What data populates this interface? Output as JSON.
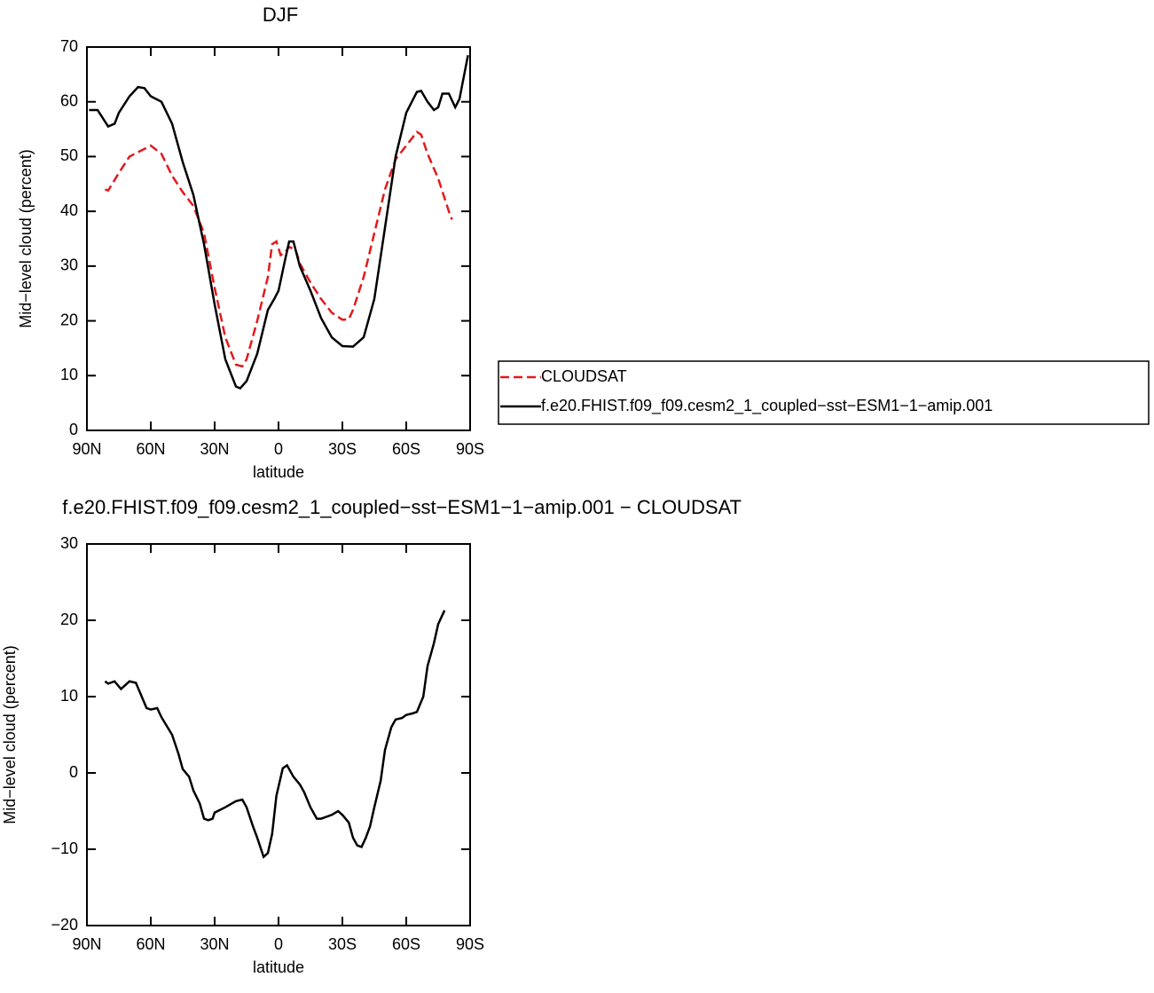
{
  "chart_data": [
    {
      "type": "line",
      "title": "DJF",
      "xlabel": "latitude",
      "ylabel": "Mid−level cloud (percent)",
      "xlim": [
        90,
        -90
      ],
      "xticks": [
        {
          "value": 90,
          "label": "90N"
        },
        {
          "value": 60,
          "label": "60N"
        },
        {
          "value": 30,
          "label": "30N"
        },
        0,
        {
          "value": -30,
          "label": "30S"
        },
        {
          "value": -60,
          "label": "60S"
        },
        {
          "value": -90,
          "label": "90S"
        }
      ],
      "ylim": [
        0,
        70
      ],
      "yticks": [
        0,
        10,
        20,
        30,
        40,
        50,
        60,
        70
      ],
      "legend": "right",
      "series": [
        {
          "name": "CLOUDSAT",
          "color": "#e31a1c",
          "dash": true,
          "x": [
            81.5,
            80,
            75,
            70,
            65,
            60,
            55,
            50,
            45,
            40,
            35,
            30,
            25,
            20,
            17,
            15,
            10,
            5,
            3,
            1,
            -1,
            -3,
            -5,
            -8,
            -10,
            -15,
            -20,
            -25,
            -30,
            -33,
            -35,
            -40,
            -45,
            -50,
            -55,
            -60,
            -65,
            -67,
            -70,
            -75,
            -80,
            -81.5
          ],
          "values": [
            44,
            43.8,
            47,
            50,
            51,
            52,
            50.5,
            46.5,
            43.5,
            41,
            36,
            26,
            17,
            12,
            11.7,
            13,
            20,
            28,
            34,
            34.5,
            32,
            32.5,
            33.5,
            33,
            30.5,
            27,
            24,
            21.5,
            20.2,
            20.3,
            22,
            28,
            36,
            44,
            49.5,
            52,
            54.5,
            54,
            50.5,
            46,
            40,
            38.5
          ]
        },
        {
          "name": "f.e20.FHIST.f09_f09.cesm2_1_coupled−sst−ESM1−1−amip.001",
          "color": "#000000",
          "dash": false,
          "x": [
            89,
            85,
            80,
            77,
            75,
            70,
            66,
            63,
            60,
            55,
            50,
            45,
            40,
            35,
            30,
            25,
            20,
            18,
            15,
            10,
            5,
            2,
            0,
            -3,
            -5,
            -7,
            -10,
            -15,
            -20,
            -25,
            -30,
            -35,
            -40,
            -45,
            -50,
            -55,
            -60,
            -65,
            -67,
            -70,
            -73,
            -75,
            -77,
            -80,
            -83,
            -85,
            -89
          ],
          "values": [
            58.5,
            58.5,
            55.5,
            56,
            58,
            61,
            62.7,
            62.5,
            61,
            60,
            56,
            49,
            43,
            34,
            23,
            13,
            8,
            7.7,
            9,
            14,
            22,
            24,
            25.5,
            31,
            34.5,
            34.5,
            30,
            25.5,
            20.5,
            17,
            15.4,
            15.3,
            17,
            24,
            37,
            50,
            58,
            61.8,
            62,
            60,
            58.5,
            59,
            61.5,
            61.5,
            59,
            60.5,
            68.5
          ]
        }
      ]
    },
    {
      "type": "line",
      "title": "f.e20.FHIST.f09_f09.cesm2_1_coupled−sst−ESM1−1−amip.001 − CLOUDSAT",
      "xlabel": "latitude",
      "ylabel": "Mid−level cloud (percent)",
      "xlim": [
        90,
        -90
      ],
      "xticks": [
        {
          "value": 90,
          "label": "90N"
        },
        {
          "value": 60,
          "label": "60N"
        },
        {
          "value": 30,
          "label": "30N"
        },
        0,
        {
          "value": -30,
          "label": "30S"
        },
        {
          "value": -60,
          "label": "60S"
        },
        {
          "value": -90,
          "label": "90S"
        }
      ],
      "ylim": [
        -20,
        30
      ],
      "yticks": [
        {
          "value": -20,
          "label": "−20"
        },
        {
          "value": -10,
          "label": "−10"
        },
        0,
        10,
        20,
        30
      ],
      "series": [
        {
          "color": "#000000",
          "dash": false,
          "x": [
            81.5,
            80,
            77,
            74,
            70,
            67,
            65,
            62,
            60,
            57,
            55,
            50,
            47,
            45,
            42,
            40,
            37,
            35,
            33,
            31,
            30,
            25,
            20,
            17,
            15,
            12,
            10,
            7,
            5,
            3,
            1,
            -2,
            -4,
            -7,
            -10,
            -12,
            -15,
            -18,
            -20,
            -25,
            -28,
            -30,
            -33,
            -35,
            -37,
            -39,
            -41,
            -43,
            -45,
            -48,
            -50,
            -53,
            -55,
            -58,
            -60,
            -63,
            -65,
            -68,
            -70,
            -73,
            -75,
            -78
          ],
          "values": [
            12,
            11.7,
            12,
            11,
            12,
            11.8,
            10.5,
            8.5,
            8.3,
            8.5,
            7.3,
            5,
            2.5,
            0.5,
            -0.5,
            -2.3,
            -4,
            -6,
            -6.2,
            -6,
            -5.2,
            -4.5,
            -3.7,
            -3.5,
            -4.5,
            -7,
            -8.5,
            -11,
            -10.5,
            -8,
            -3,
            0.6,
            1,
            -0.5,
            -1.5,
            -2.5,
            -4.5,
            -6,
            -6,
            -5.5,
            -5,
            -5.5,
            -6.5,
            -8.5,
            -9.5,
            -9.7,
            -8.5,
            -7,
            -4.5,
            -1,
            3,
            6,
            7,
            7.2,
            7.6,
            7.8,
            8,
            10,
            14,
            17,
            19.5,
            21.3
          ]
        }
      ]
    }
  ]
}
